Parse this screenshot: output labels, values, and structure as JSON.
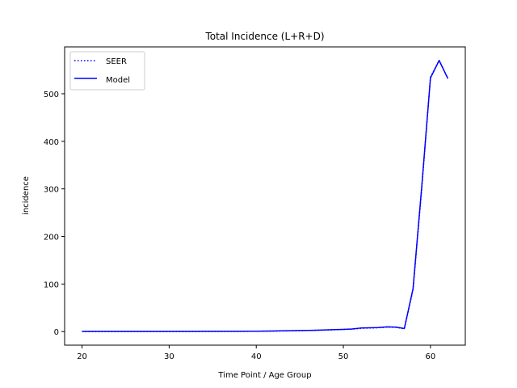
{
  "chart_data": {
    "type": "line",
    "title": "Total Incidence (L+R+D)",
    "xlabel": "Time Point / Age Group",
    "ylabel": "incidence",
    "xlim": [
      18,
      64
    ],
    "ylim": [
      -28.5,
      598.5
    ],
    "xticks": [
      20,
      30,
      40,
      50,
      60
    ],
    "yticks": [
      0,
      100,
      200,
      300,
      400,
      500
    ],
    "legend_position": "upper-left",
    "grid": false,
    "x": [
      20,
      21,
      22,
      23,
      24,
      25,
      26,
      27,
      28,
      29,
      30,
      31,
      32,
      33,
      34,
      35,
      36,
      37,
      38,
      39,
      40,
      41,
      42,
      43,
      44,
      45,
      46,
      47,
      48,
      49,
      50,
      51,
      52,
      53,
      54,
      55,
      56,
      57,
      58,
      59,
      60,
      61,
      62
    ],
    "series": [
      {
        "name": "SEER",
        "style": "dotted",
        "color": "#0000ff",
        "values": [
          0.2,
          0.2,
          0.2,
          0.2,
          0.2,
          0.2,
          0.2,
          0.2,
          0.2,
          0.2,
          0.3,
          0.3,
          0.3,
          0.3,
          0.4,
          0.4,
          0.5,
          0.5,
          0.6,
          0.7,
          0.8,
          1.0,
          1.2,
          1.4,
          1.7,
          2.0,
          2.4,
          2.8,
          3.3,
          3.9,
          4.5,
          5.2,
          7.0,
          7.5,
          8.0,
          9.5,
          9.0,
          6.0,
          88.0,
          300.0,
          535.0,
          570.0,
          532.0
        ]
      },
      {
        "name": "Model",
        "style": "solid",
        "color": "#0000ff",
        "values": [
          0.3,
          0.3,
          0.3,
          0.3,
          0.3,
          0.3,
          0.3,
          0.3,
          0.3,
          0.3,
          0.4,
          0.4,
          0.4,
          0.4,
          0.5,
          0.5,
          0.6,
          0.6,
          0.7,
          0.8,
          0.9,
          1.1,
          1.3,
          1.6,
          1.9,
          2.2,
          2.6,
          3.0,
          3.5,
          4.1,
          4.7,
          5.5,
          7.5,
          8.0,
          8.5,
          10.0,
          9.5,
          6.5,
          90.0,
          305.0,
          533.0,
          570.0,
          532.0
        ]
      }
    ]
  }
}
